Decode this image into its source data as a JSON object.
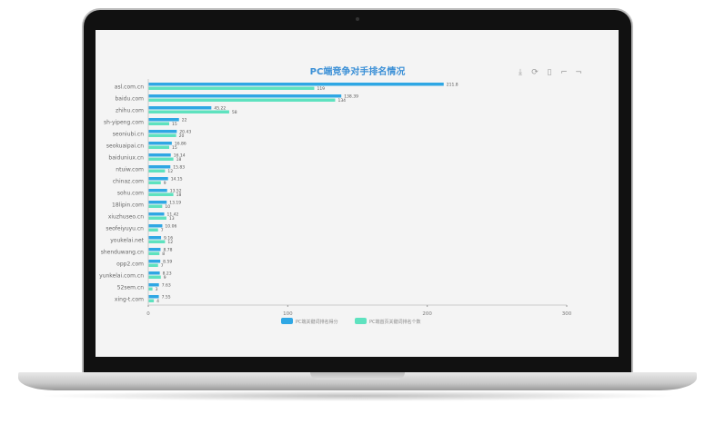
{
  "chart_data": {
    "type": "bar",
    "orientation": "horizontal",
    "title": "PC端竞争对手排名情况",
    "categories": [
      "asl.com.cn",
      "baidu.com",
      "zhihu.com",
      "sh-yipeng.com",
      "seoniubi.cn",
      "seokuaipai.cn",
      "baiduniux.cn",
      "ntuiw.com",
      "chinaz.com",
      "sohu.com",
      "18lipin.com",
      "xiuzhuseo.cn",
      "seofeiyuyu.cn",
      "youkelai.net",
      "shenduwang.cn",
      "opp2.com",
      "yunkelai.com.cn",
      "52sem.cn",
      "xing-t.com"
    ],
    "series": [
      {
        "name": "PC端关键词排名得分",
        "color": "#2fa7e4",
        "values": [
          211.8,
          138.39,
          45.22,
          22,
          20.43,
          16.86,
          16.14,
          15.83,
          14.15,
          13.52,
          13.19,
          11.42,
          10.06,
          9.16,
          8.78,
          8.59,
          8.23,
          7.63,
          7.55
        ]
      },
      {
        "name": "PC端首页关键词排名个数",
        "color": "#5ee2bf",
        "values": [
          119,
          134,
          58,
          15,
          20,
          15,
          18,
          12,
          9,
          18,
          10,
          13,
          7,
          12,
          8,
          7,
          9,
          3,
          4
        ]
      }
    ],
    "xlim": [
      0,
      300
    ],
    "xticks": [
      "0",
      "100",
      "200",
      "300"
    ],
    "grid": false,
    "legend": "bottom"
  },
  "toolbox": [
    "download-icon",
    "refresh-icon",
    "data-view-icon",
    "zoom-icon",
    "zoom-reset-icon"
  ]
}
